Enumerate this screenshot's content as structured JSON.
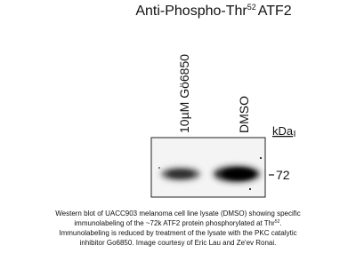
{
  "title": {
    "text": "Anti-Phospho-Thr",
    "superscript": "52",
    "suffix": "ATF2"
  },
  "lanes": [
    "10µM Gö6850",
    "DMSO"
  ],
  "marker": {
    "unit": "kDa",
    "label": "72"
  },
  "caption": {
    "line1": "Western blot of UACC903 melanoma cell line lysate (DMSO) showing specific",
    "line2": {
      "text": "immunolabeling of the ~72k ATF2 protein phosphorylated at Thr",
      "superscript": "52",
      "after": "."
    },
    "line3": "Immunolabeling is reduced by treatment of the lysate with the PKC catalytic",
    "line4": "inhibitor Go6850.  Image courtesy of Eric Lau and Ze'ev Ronai."
  }
}
